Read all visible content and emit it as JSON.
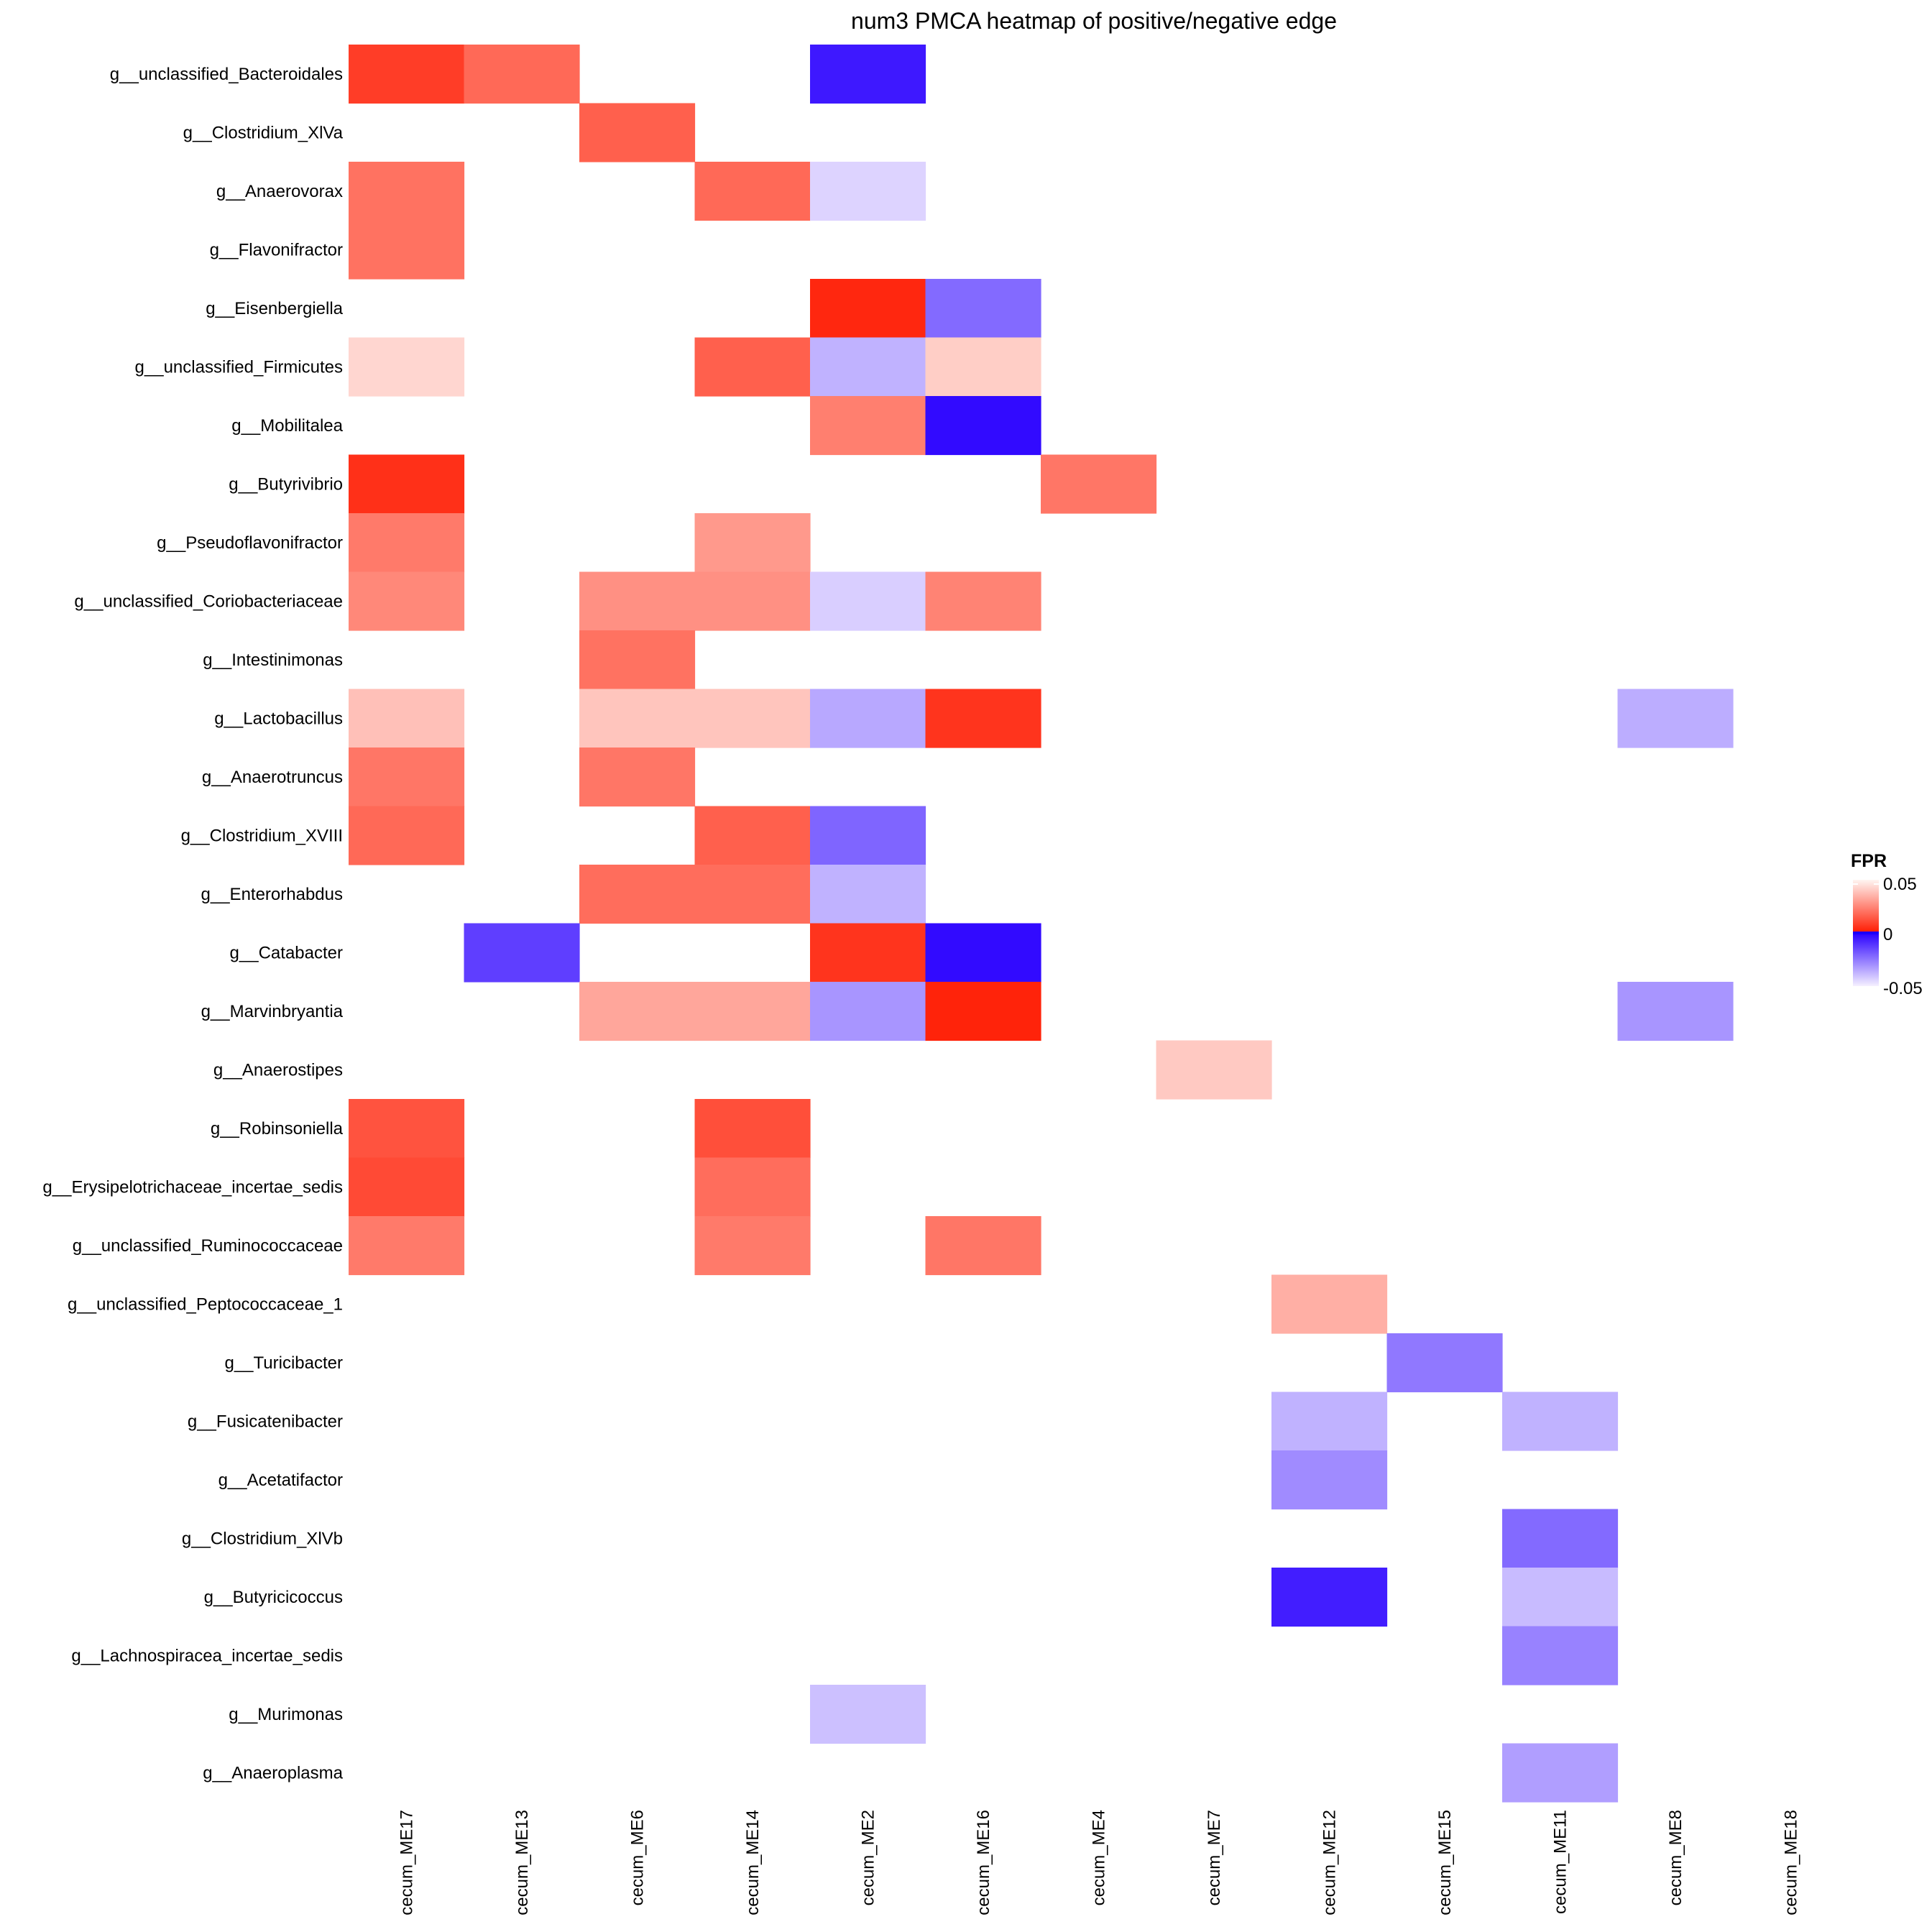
{
  "chart_data": {
    "type": "heatmap",
    "title": "num3 PMCA heatmap of positive/negative edge",
    "xlabel": "",
    "ylabel": "",
    "columns": [
      "cecum_ME17",
      "cecum_ME13",
      "cecum_ME6",
      "cecum_ME14",
      "cecum_ME2",
      "cecum_ME16",
      "cecum_ME4",
      "cecum_ME7",
      "cecum_ME12",
      "cecum_ME15",
      "cecum_ME11",
      "cecum_ME8",
      "cecum_ME18"
    ],
    "rows": [
      "g__unclassified_Bacteroidales",
      "g__Clostridium_XlVa",
      "g__Anaerovorax",
      "g__Flavonifractor",
      "g__Eisenbergiella",
      "g__unclassified_Firmicutes",
      "g__Mobilitalea",
      "g__Butyrivibrio",
      "g__Pseudoflavonifractor",
      "g__unclassified_Coriobacteriaceae",
      "g__Intestinimonas",
      "g__Lactobacillus",
      "g__Anaerotruncus",
      "g__Clostridium_XVIII",
      "g__Enterorhabdus",
      "g__Catabacter",
      "g__Marvinbryantia",
      "g__Anaerostipes",
      "g__Robinsoniella",
      "g__Erysipelotrichaceae_incertae_sedis",
      "g__unclassified_Ruminococcaceae",
      "g__unclassified_Peptococcaceae_1",
      "g__Turicibacter",
      "g__Fusicatenibacter",
      "g__Acetatifactor",
      "g__Clostridium_XlVb",
      "g__Butyricicoccus",
      "g__Lachnospiracea_incertae_sedis",
      "g__Murimonas",
      "g__Anaeroplasma"
    ],
    "cells": [
      {
        "row": 0,
        "col": 0,
        "value": 0.008
      },
      {
        "row": 0,
        "col": 1,
        "value": 0.018
      },
      {
        "row": 0,
        "col": 4,
        "value": -0.005
      },
      {
        "row": 1,
        "col": 2,
        "value": 0.016
      },
      {
        "row": 2,
        "col": 0,
        "value": 0.02
      },
      {
        "row": 2,
        "col": 3,
        "value": 0.018
      },
      {
        "row": 2,
        "col": 4,
        "value": -0.044
      },
      {
        "row": 3,
        "col": 0,
        "value": 0.02
      },
      {
        "row": 4,
        "col": 4,
        "value": 0.003
      },
      {
        "row": 4,
        "col": 5,
        "value": -0.022
      },
      {
        "row": 5,
        "col": 0,
        "value": 0.043
      },
      {
        "row": 5,
        "col": 3,
        "value": 0.016
      },
      {
        "row": 5,
        "col": 4,
        "value": -0.037
      },
      {
        "row": 5,
        "col": 5,
        "value": 0.041
      },
      {
        "row": 6,
        "col": 4,
        "value": 0.023
      },
      {
        "row": 6,
        "col": 5,
        "value": -0.002
      },
      {
        "row": 7,
        "col": 0,
        "value": 0.005
      },
      {
        "row": 7,
        "col": 6,
        "value": 0.021
      },
      {
        "row": 8,
        "col": 0,
        "value": 0.022
      },
      {
        "row": 8,
        "col": 3,
        "value": 0.029
      },
      {
        "row": 9,
        "col": 0,
        "value": 0.025
      },
      {
        "row": 9,
        "col": 2,
        "value": 0.027
      },
      {
        "row": 9,
        "col": 3,
        "value": 0.027
      },
      {
        "row": 9,
        "col": 4,
        "value": -0.043
      },
      {
        "row": 9,
        "col": 5,
        "value": 0.024
      },
      {
        "row": 10,
        "col": 2,
        "value": 0.02
      },
      {
        "row": 11,
        "col": 0,
        "value": 0.038
      },
      {
        "row": 11,
        "col": 2,
        "value": 0.039
      },
      {
        "row": 11,
        "col": 3,
        "value": 0.039
      },
      {
        "row": 11,
        "col": 4,
        "value": -0.035
      },
      {
        "row": 11,
        "col": 5,
        "value": 0.006
      },
      {
        "row": 11,
        "col": 11,
        "value": -0.036
      },
      {
        "row": 12,
        "col": 0,
        "value": 0.021
      },
      {
        "row": 12,
        "col": 2,
        "value": 0.021
      },
      {
        "row": 13,
        "col": 0,
        "value": 0.018
      },
      {
        "row": 13,
        "col": 3,
        "value": 0.016
      },
      {
        "row": 13,
        "col": 4,
        "value": -0.021
      },
      {
        "row": 14,
        "col": 2,
        "value": 0.019
      },
      {
        "row": 14,
        "col": 3,
        "value": 0.019
      },
      {
        "row": 14,
        "col": 4,
        "value": -0.037
      },
      {
        "row": 15,
        "col": 1,
        "value": -0.013
      },
      {
        "row": 15,
        "col": 4,
        "value": 0.006
      },
      {
        "row": 15,
        "col": 5,
        "value": -0.002
      },
      {
        "row": 16,
        "col": 2,
        "value": 0.032
      },
      {
        "row": 16,
        "col": 3,
        "value": 0.032
      },
      {
        "row": 16,
        "col": 4,
        "value": -0.031
      },
      {
        "row": 16,
        "col": 5,
        "value": 0.002
      },
      {
        "row": 16,
        "col": 11,
        "value": -0.031
      },
      {
        "row": 17,
        "col": 7,
        "value": 0.04
      },
      {
        "row": 18,
        "col": 0,
        "value": 0.013
      },
      {
        "row": 18,
        "col": 3,
        "value": 0.012
      },
      {
        "row": 19,
        "col": 0,
        "value": 0.011
      },
      {
        "row": 19,
        "col": 3,
        "value": 0.019
      },
      {
        "row": 20,
        "col": 0,
        "value": 0.022
      },
      {
        "row": 20,
        "col": 3,
        "value": 0.022
      },
      {
        "row": 20,
        "col": 5,
        "value": 0.021
      },
      {
        "row": 21,
        "col": 8,
        "value": 0.034
      },
      {
        "row": 22,
        "col": 9,
        "value": -0.025
      },
      {
        "row": 23,
        "col": 8,
        "value": -0.037
      },
      {
        "row": 23,
        "col": 10,
        "value": -0.037
      },
      {
        "row": 24,
        "col": 8,
        "value": -0.029
      },
      {
        "row": 25,
        "col": 10,
        "value": -0.022
      },
      {
        "row": 26,
        "col": 8,
        "value": -0.006
      },
      {
        "row": 26,
        "col": 10,
        "value": -0.039
      },
      {
        "row": 27,
        "col": 10,
        "value": -0.027
      },
      {
        "row": 28,
        "col": 4,
        "value": -0.04
      },
      {
        "row": 29,
        "col": 10,
        "value": -0.033
      }
    ],
    "color_scale": {
      "name": "FPR",
      "min": -0.05,
      "max": 0.05,
      "ticks": [
        "0.05",
        "0",
        "-0.05"
      ],
      "near_zero_positive": "#ff1a00",
      "max_positive": "#fff5f2",
      "near_zero_negative": "#2a00ff",
      "max_negative": "#f5f0ff",
      "zero_line": "#1a00ff"
    },
    "legend_position": "right",
    "grid": false
  }
}
